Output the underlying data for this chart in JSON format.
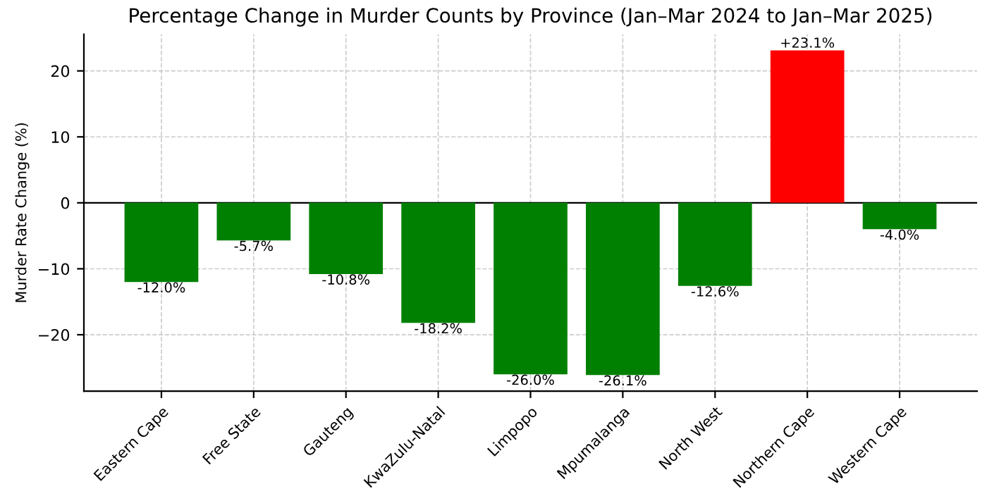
{
  "chart_data": {
    "type": "bar",
    "title": "Percentage Change in Murder Counts by Province (Jan–Mar 2024 to Jan–Mar 2025)",
    "ylabel": "Murder Rate Change (%)",
    "categories": [
      "Eastern Cape",
      "Free State",
      "Gauteng",
      "KwaZulu-Natal",
      "Limpopo",
      "Mpumalanga",
      "North West",
      "Northern Cape",
      "Western Cape"
    ],
    "values": [
      -12.0,
      -5.7,
      -10.8,
      -18.2,
      -26.0,
      -26.1,
      -12.6,
      23.1,
      -4.0
    ],
    "colors": [
      "#008000",
      "#008000",
      "#008000",
      "#008000",
      "#008000",
      "#008000",
      "#008000",
      "#ff0000",
      "#008000"
    ],
    "value_labels": [
      "-12.0%",
      "-5.7%",
      "-10.8%",
      "-18.2%",
      "-26.0%",
      "-26.1%",
      "-12.6%",
      "+23.1%",
      "-4.0%"
    ],
    "ylim": [
      -28.56,
      25.56
    ],
    "yticks": [
      {
        "value": -20,
        "label": "−20"
      },
      {
        "value": -10,
        "label": "−10"
      },
      0,
      10,
      20
    ],
    "ref_lines": [
      {
        "axis": "y",
        "value": 0,
        "color": "#000000",
        "line_style": "solid"
      }
    ],
    "grid": true,
    "line_style": "dashed"
  }
}
